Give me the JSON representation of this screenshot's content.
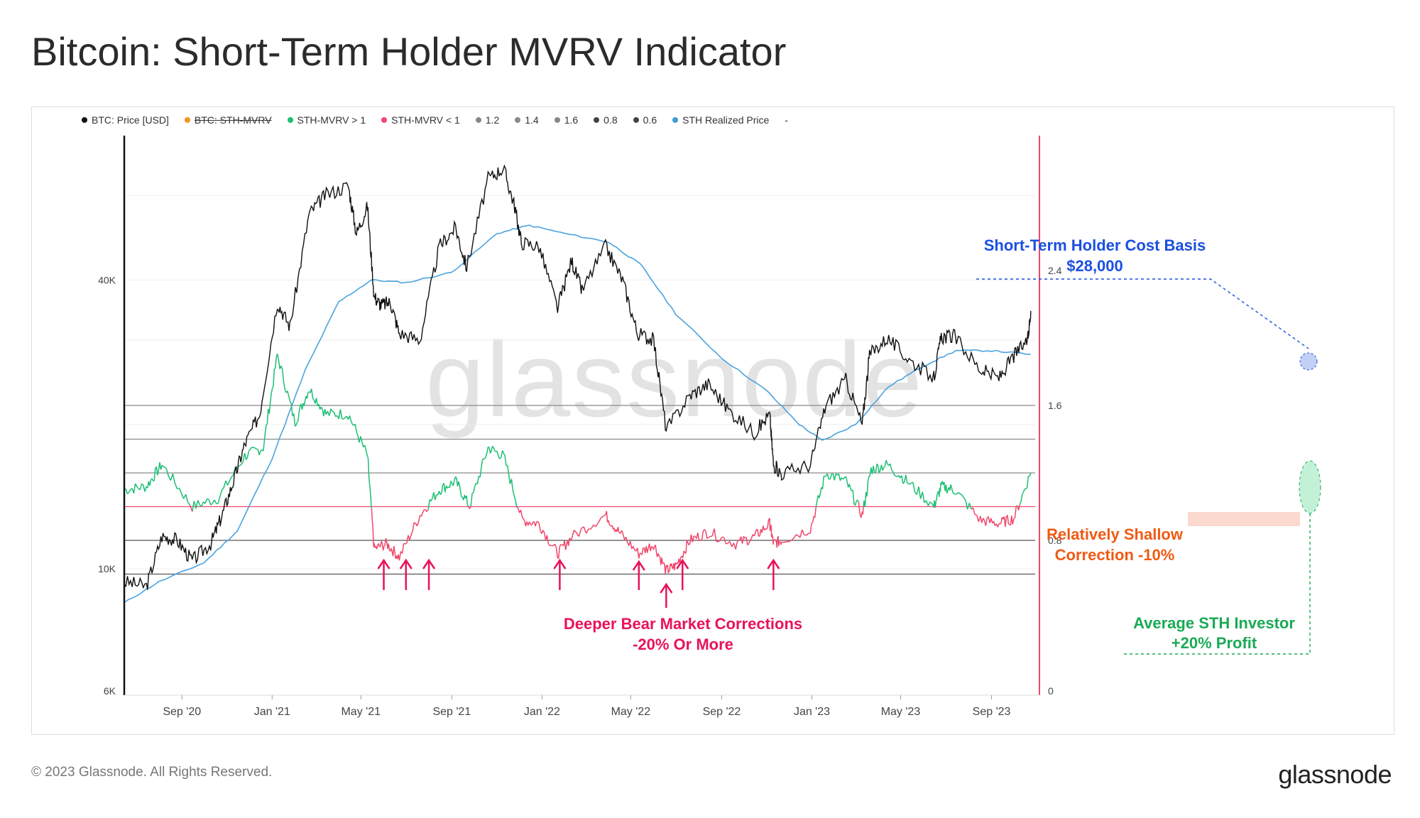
{
  "page": {
    "title": "Bitcoin: Short-Term Holder MVRV Indicator",
    "copyright": "© 2023 Glassnode. All Rights Reserved.",
    "logo": "glassnode",
    "watermark": "glassnode"
  },
  "legend": [
    {
      "label": "BTC: Price [USD]",
      "color": "#111111",
      "struck": false
    },
    {
      "label": "BTC: STH-MVRV",
      "color": "#f7931a",
      "struck": true
    },
    {
      "label": "STH-MVRV > 1",
      "color": "#1dbf73",
      "struck": false
    },
    {
      "label": "STH-MVRV < 1",
      "color": "#f0476b",
      "struck": false
    },
    {
      "label": "1.2",
      "color": "#888888",
      "struck": false
    },
    {
      "label": "1.4",
      "color": "#888888",
      "struck": false
    },
    {
      "label": "1.6",
      "color": "#888888",
      "struck": false
    },
    {
      "label": "0.8",
      "color": "#444444",
      "struck": false
    },
    {
      "label": "0.6",
      "color": "#444444",
      "struck": false
    },
    {
      "label": "STH Realized Price",
      "color": "#3f9bd6",
      "struck": false
    },
    {
      "label": "-",
      "color": "",
      "struck": false
    }
  ],
  "annotations": {
    "cost_basis_line1": "Short-Term Holder Cost Basis",
    "cost_basis_line2": "$28,000",
    "shallow_line1": "Relatively Shallow",
    "shallow_line2": "Correction -10%",
    "deep_line1": "Deeper Bear Market Corrections",
    "deep_line2": "-20% Or More",
    "profit_line1": "Average STH Investor",
    "profit_line2": "+20% Profit"
  },
  "colors": {
    "price": "#111111",
    "realized": "#4aa3df",
    "above": "#1dbf73",
    "below": "#f0476b",
    "arrow": "#e8125c",
    "blue_text": "#1a4fe0",
    "orange_text": "#f05a14",
    "green_text": "#1aaa55",
    "pink_text": "#e8125c"
  },
  "chart_data": {
    "type": "line",
    "title": "Bitcoin: Short-Term Holder MVRV Indicator",
    "x_ticks": [
      "Sep '20",
      "Jan '21",
      "May '21",
      "Sep '21",
      "Jan '22",
      "May '22",
      "Sep '22",
      "Jan '23",
      "May '23",
      "Sep '23"
    ],
    "x_range": [
      "2020-06-15",
      "2023-10-30"
    ],
    "y_left": {
      "scale": "log",
      "ticks": [
        "6K",
        "10K",
        "40K"
      ],
      "range": [
        6000,
        80000
      ]
    },
    "y_right": {
      "scale": "linear",
      "ticks": [
        "0",
        "0.8",
        "1.6",
        "2.4"
      ],
      "range": [
        0,
        3.2
      ]
    },
    "series": [
      {
        "name": "BTC: Price [USD]",
        "axis": "left",
        "dates": [
          "2020-06-15",
          "2020-07-15",
          "2020-08-05",
          "2020-08-25",
          "2020-09-15",
          "2020-10-10",
          "2020-10-25",
          "2020-11-10",
          "2020-11-25",
          "2020-12-15",
          "2021-01-08",
          "2021-01-25",
          "2021-02-20",
          "2021-03-13",
          "2021-04-14",
          "2021-04-25",
          "2021-05-10",
          "2021-05-19",
          "2021-05-28",
          "2021-06-10",
          "2021-06-22",
          "2021-07-20",
          "2021-08-15",
          "2021-09-06",
          "2021-09-21",
          "2021-10-20",
          "2021-11-10",
          "2021-11-25",
          "2021-12-04",
          "2021-12-28",
          "2022-01-22",
          "2022-02-10",
          "2022-02-24",
          "2022-03-28",
          "2022-04-20",
          "2022-05-10",
          "2022-06-01",
          "2022-06-18",
          "2022-07-20",
          "2022-08-14",
          "2022-09-10",
          "2022-10-15",
          "2022-11-05",
          "2022-11-10",
          "2022-11-21",
          "2022-12-30",
          "2023-01-20",
          "2023-02-16",
          "2023-03-10",
          "2023-03-20",
          "2023-04-13",
          "2023-05-10",
          "2023-06-15",
          "2023-06-25",
          "2023-07-13",
          "2023-08-17",
          "2023-09-11",
          "2023-10-01",
          "2023-10-20",
          "2023-10-24"
        ],
        "values": [
          9400,
          9200,
          11700,
          11500,
          10400,
          11300,
          12900,
          15300,
          18200,
          21000,
          36000,
          32000,
          55000,
          60000,
          63000,
          50000,
          57000,
          37000,
          35500,
          36000,
          31000,
          30000,
          47000,
          51500,
          42500,
          65000,
          68500,
          57000,
          48000,
          47000,
          35000,
          44000,
          38000,
          47000,
          40000,
          31000,
          30000,
          19500,
          23000,
          24300,
          21500,
          19200,
          21000,
          16500,
          15800,
          16500,
          22000,
          24800,
          20000,
          28000,
          30300,
          27500,
          25000,
          30500,
          30500,
          26000,
          25000,
          27800,
          30000,
          34500
        ]
      },
      {
        "name": "STH Realized Price",
        "axis": "left",
        "dates": [
          "2020-06-15",
          "2020-08-01",
          "2020-10-01",
          "2020-11-15",
          "2021-01-01",
          "2021-02-15",
          "2021-04-01",
          "2021-05-15",
          "2021-07-01",
          "2021-09-01",
          "2021-11-01",
          "2021-12-15",
          "2022-02-01",
          "2022-04-01",
          "2022-05-15",
          "2022-07-01",
          "2022-09-01",
          "2022-11-01",
          "2022-12-15",
          "2023-01-15",
          "2023-03-01",
          "2023-04-15",
          "2023-06-01",
          "2023-07-15",
          "2023-09-01",
          "2023-10-24"
        ],
        "values": [
          8500,
          9400,
          10300,
          12000,
          17000,
          26000,
          36000,
          40000,
          39500,
          41500,
          50000,
          52000,
          50000,
          48000,
          43000,
          34000,
          27500,
          23500,
          20000,
          18500,
          20000,
          24000,
          26500,
          28500,
          28500,
          28000
        ]
      },
      {
        "name": "STH-MVRV",
        "axis": "right",
        "dates": [
          "2020-06-15",
          "2020-07-15",
          "2020-08-05",
          "2020-09-15",
          "2020-10-20",
          "2020-11-25",
          "2020-12-20",
          "2021-01-08",
          "2021-02-01",
          "2021-02-20",
          "2021-03-15",
          "2021-04-14",
          "2021-05-10",
          "2021-05-19",
          "2021-06-05",
          "2021-06-22",
          "2021-07-20",
          "2021-08-15",
          "2021-09-06",
          "2021-09-25",
          "2021-10-20",
          "2021-11-10",
          "2021-12-05",
          "2021-12-28",
          "2022-01-22",
          "2022-02-10",
          "2022-03-28",
          "2022-04-15",
          "2022-05-12",
          "2022-06-01",
          "2022-06-18",
          "2022-07-01",
          "2022-07-20",
          "2022-08-14",
          "2022-09-20",
          "2022-10-15",
          "2022-11-05",
          "2022-11-10",
          "2022-11-21",
          "2022-12-30",
          "2023-01-20",
          "2023-02-16",
          "2023-03-10",
          "2023-03-22",
          "2023-04-13",
          "2023-05-10",
          "2023-06-15",
          "2023-06-25",
          "2023-07-13",
          "2023-08-17",
          "2023-09-11",
          "2023-10-01",
          "2023-10-24"
        ],
        "values": [
          1.1,
          1.12,
          1.25,
          1.0,
          1.05,
          1.3,
          1.35,
          1.9,
          1.5,
          1.7,
          1.55,
          1.55,
          1.3,
          0.75,
          0.78,
          0.7,
          0.95,
          1.1,
          1.15,
          1.0,
          1.35,
          1.3,
          0.92,
          0.9,
          0.72,
          0.82,
          0.95,
          0.85,
          0.72,
          0.78,
          0.62,
          0.65,
          0.8,
          0.85,
          0.78,
          0.82,
          0.9,
          0.78,
          0.8,
          0.87,
          1.2,
          1.15,
          0.95,
          1.22,
          1.25,
          1.15,
          1.0,
          1.12,
          1.1,
          0.92,
          0.9,
          0.93,
          1.2
        ]
      }
    ],
    "reference_levels": [
      {
        "label": "1.6",
        "value": 1.6
      },
      {
        "label": "1.4",
        "value": 1.4
      },
      {
        "label": "1.2",
        "value": 1.2
      },
      {
        "label": "1.0",
        "value": 1.0
      },
      {
        "label": "0.8",
        "value": 0.8
      },
      {
        "label": "0.6",
        "value": 0.6
      }
    ],
    "arrow_dates": [
      "2021-06-01",
      "2021-07-01",
      "2021-08-01",
      "2022-01-25",
      "2022-05-12",
      "2022-06-18",
      "2022-07-10",
      "2022-11-10"
    ]
  }
}
